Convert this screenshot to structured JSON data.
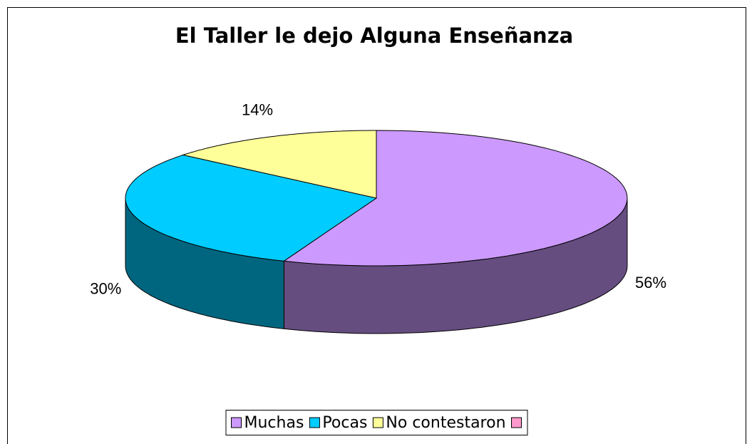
{
  "chart_data": {
    "type": "pie",
    "title": "El Taller le dejo Alguna Enseñanza",
    "categories": [
      "Muchas",
      "Pocas",
      "No contestaron",
      null
    ],
    "values": [
      56,
      30,
      14,
      null
    ],
    "value_labels": [
      "56%",
      "30%",
      "14%",
      null
    ],
    "colors": [
      "#cc99ff",
      "#00ccff",
      "#ffff99",
      "#ff99cc"
    ],
    "three_d": true,
    "legend": "bottom"
  }
}
